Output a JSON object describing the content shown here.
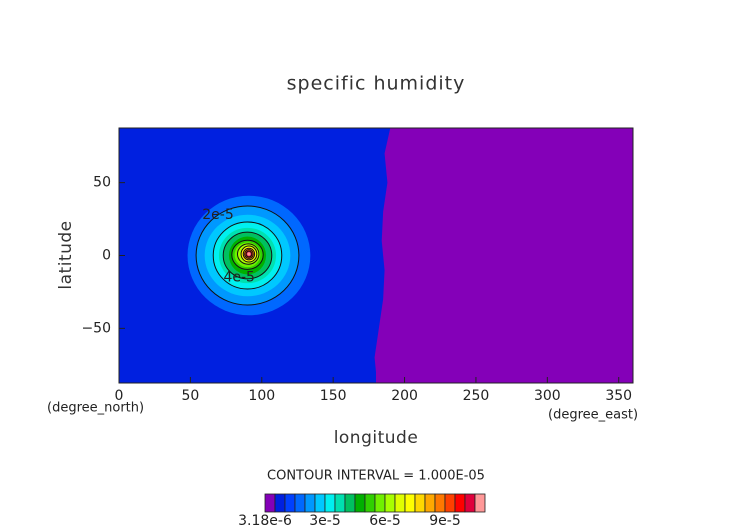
{
  "chart_data": {
    "type": "contour",
    "title": "specific humidity",
    "x_label": "longitude",
    "y_label": "latitude",
    "x_units": "(degree_east)",
    "y_units": "(degree_north)",
    "subtitle": "CONTOUR INTERVAL = 1.000E-05",
    "xlim": [
      0,
      360
    ],
    "ylim": [
      -87.5,
      87.5
    ],
    "xticks": [
      0,
      50,
      100,
      150,
      200,
      250,
      300,
      350
    ],
    "yticks": [
      {
        "value": -50,
        "label": "−50"
      },
      0,
      50
    ],
    "colorbar": {
      "levels": [
        3.18e-06,
        5e-06,
        1e-05,
        1.5e-05,
        2e-05,
        2.5e-05,
        3e-05,
        3.5e-05,
        4e-05,
        4.5e-05,
        5e-05,
        5.5e-05,
        6e-05,
        6.5e-05,
        7e-05,
        7.5e-05,
        8e-05,
        8.5e-05,
        9e-05,
        9.5e-05,
        0.0001,
        0.000105,
        0.00011
      ],
      "colors": [
        "#8400b8",
        "#0020e0",
        "#0040ff",
        "#0068ff",
        "#0098ff",
        "#00c8ff",
        "#00f0f0",
        "#00e0b0",
        "#00c060",
        "#00b000",
        "#30d000",
        "#70f000",
        "#a8ff00",
        "#e0ff00",
        "#ffff00",
        "#ffd800",
        "#ffa800",
        "#ff7800",
        "#ff4000",
        "#ff0000",
        "#e0003c",
        "#ff9898"
      ],
      "ticks": [
        {
          "value": 3.18e-06,
          "label": "3.18e-6"
        },
        {
          "value": 3e-05,
          "label": "3e-5"
        },
        {
          "value": 6e-05,
          "label": "6e-5"
        },
        {
          "value": 9e-05,
          "label": "9e-5"
        }
      ]
    },
    "regions": [
      {
        "min": 5e-06,
        "lon": [
          0,
          360,
          360,
          0
        ],
        "lat": [
          87.5,
          87.5,
          -87.5,
          -87.5
        ]
      },
      {
        "min": 3.18e-06,
        "lon": [
          190,
          186,
          188,
          185,
          184,
          186,
          185,
          182,
          179,
          180,
          180,
          360,
          360
        ],
        "lat": [
          87.5,
          70,
          50,
          30,
          10,
          -10,
          -30,
          -50,
          -70,
          -80,
          -87.5,
          -87.5,
          87.5
        ]
      },
      {
        "min": 1.5e-05,
        "center": [
          91,
          0
        ],
        "radius": [
          43,
          41
        ]
      },
      {
        "min": 2e-05,
        "center": [
          90,
          0
        ],
        "radius": [
          36,
          34
        ]
      },
      {
        "min": 2.5e-05,
        "center": [
          90,
          0
        ],
        "radius": [
          30,
          28
        ]
      },
      {
        "min": 3e-05,
        "center": [
          90,
          0
        ],
        "radius": [
          24,
          23
        ]
      },
      {
        "min": 3.5e-05,
        "center": [
          90,
          0
        ],
        "radius": [
          20,
          19
        ]
      },
      {
        "min": 4e-05,
        "center": [
          90,
          0
        ],
        "radius": [
          17,
          16
        ]
      },
      {
        "min": 4.5e-05,
        "center": [
          90,
          0
        ],
        "radius": [
          13,
          13
        ]
      },
      {
        "min": 5e-05,
        "center": [
          90,
          0.5
        ],
        "radius": [
          11,
          10
        ]
      },
      {
        "min": 5.5e-05,
        "center": [
          90,
          0.5
        ],
        "radius": [
          9,
          8.5
        ]
      },
      {
        "min": 6e-05,
        "center": [
          90.5,
          1
        ],
        "radius": [
          7.5,
          7
        ]
      },
      {
        "min": 7e-05,
        "center": [
          91,
          1
        ],
        "radius": [
          5.5,
          5.5
        ]
      },
      {
        "min": 8e-05,
        "center": [
          91,
          1
        ],
        "radius": [
          4,
          4
        ]
      },
      {
        "min": 9e-05,
        "center": [
          91,
          1
        ],
        "radius": [
          3,
          3
        ]
      },
      {
        "min": 0.0001,
        "center": [
          91,
          1
        ],
        "radius": [
          2,
          2
        ]
      },
      {
        "min": 0.000105,
        "center": [
          91,
          1
        ],
        "radius": [
          1.2,
          1.2
        ]
      }
    ],
    "contour_labels": [
      {
        "value": 2e-05,
        "label": "2e-5"
      },
      {
        "value": 4e-05,
        "label": "4e-5"
      }
    ]
  }
}
